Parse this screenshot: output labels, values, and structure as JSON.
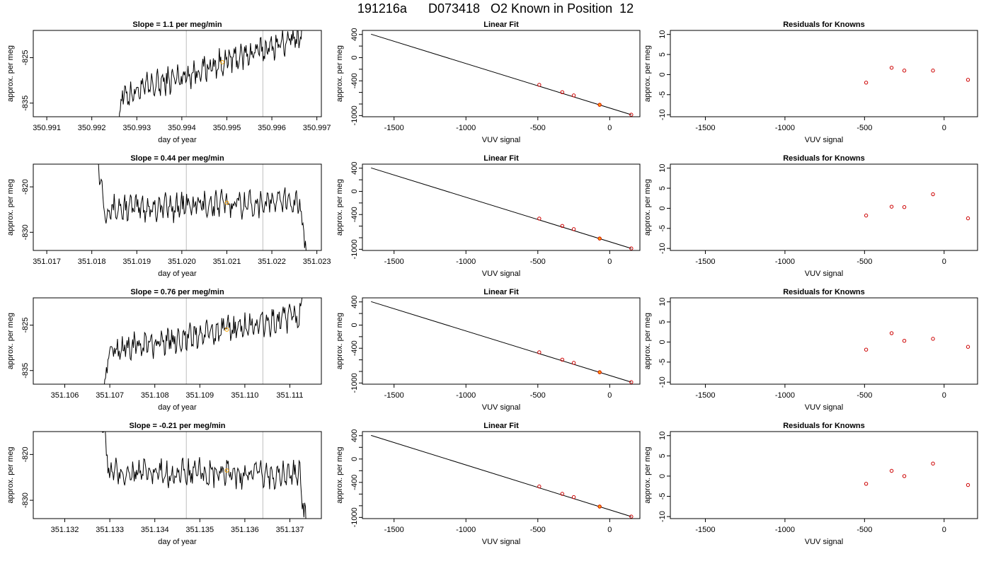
{
  "title": "191216a      D073418   O2 Known in Position  12",
  "chart_data": [
    {
      "panel": "trace",
      "row": 1,
      "type": "line",
      "title": "Slope =  1.1  per meg/min",
      "xlabel": "day of year",
      "ylabel": "approx. per meg",
      "xlim": [
        350.9907,
        350.9971
      ],
      "ylim": [
        -838,
        -819
      ],
      "xticks": [
        350.991,
        350.992,
        350.993,
        350.994,
        350.995,
        350.996,
        350.997
      ],
      "xtick_labels": [
        "350.991",
        "350.992",
        "350.993",
        "350.994",
        "350.995",
        "350.996",
        "350.997"
      ],
      "yticks": [
        -835,
        -825
      ],
      "ytick_labels": [
        "-835",
        "-825"
      ],
      "vlines": [
        350.9941,
        350.9958
      ],
      "marker": {
        "x": 350.9949,
        "y": -826,
        "color": "#ffa500"
      },
      "trace_x_range": [
        350.9925,
        350.9968
      ],
      "trend": {
        "start": -834,
        "end": -820
      },
      "line_color": "#000000",
      "vline_color": "#bebebe"
    },
    {
      "panel": "trace",
      "row": 2,
      "type": "line",
      "title": "Slope =  0.44  per meg/min",
      "xlabel": "day of year",
      "ylabel": "approx. per meg",
      "xlim": [
        351.0167,
        351.0231
      ],
      "ylim": [
        -834,
        -815
      ],
      "xticks": [
        351.017,
        351.018,
        351.019,
        351.02,
        351.021,
        351.022,
        351.023
      ],
      "xtick_labels": [
        "351.017",
        "351.018",
        "351.019",
        "351.020",
        "351.021",
        "351.022",
        "351.023"
      ],
      "yticks": [
        -830,
        -820
      ],
      "ytick_labels": [
        "-830",
        "-820"
      ],
      "vlines": [
        351.0201,
        351.0218
      ],
      "marker": {
        "x": 351.021,
        "y": -823.5,
        "color": "#ffa500"
      },
      "trace_x_range": [
        351.0181,
        351.0228
      ],
      "trend": {
        "start": -825,
        "end": -823
      },
      "line_color": "#000000",
      "vline_color": "#bebebe"
    },
    {
      "panel": "trace",
      "row": 3,
      "type": "line",
      "title": "Slope =  0.76  per meg/min",
      "xlabel": "day of year",
      "ylabel": "approx. per meg",
      "xlim": [
        351.1053,
        351.1117
      ],
      "ylim": [
        -838,
        -819
      ],
      "xticks": [
        351.106,
        351.107,
        351.108,
        351.109,
        351.11,
        351.111
      ],
      "xtick_labels": [
        "351.106",
        "351.107",
        "351.108",
        "351.109",
        "351.110",
        "351.111"
      ],
      "yticks": [
        -835,
        -825
      ],
      "ytick_labels": [
        "-835",
        "-825"
      ],
      "vlines": [
        351.1087,
        351.1104
      ],
      "marker": {
        "x": 351.1096,
        "y": -826,
        "color": "#ffa500"
      },
      "trace_x_range": [
        351.1068,
        351.1114
      ],
      "trend": {
        "start": -831,
        "end": -823
      },
      "line_color": "#000000",
      "vline_color": "#bebebe"
    },
    {
      "panel": "trace",
      "row": 4,
      "type": "line",
      "title": "Slope =  -0.21  per meg/min",
      "xlabel": "day of year",
      "ylabel": "approx. per meg",
      "xlim": [
        351.1313,
        351.1377
      ],
      "ylim": [
        -834,
        -815
      ],
      "xticks": [
        351.132,
        351.133,
        351.134,
        351.135,
        351.136,
        351.137
      ],
      "xtick_labels": [
        "351.132",
        "351.133",
        "351.134",
        "351.135",
        "351.136",
        "351.137"
      ],
      "yticks": [
        -830,
        -820
      ],
      "ytick_labels": [
        "-830",
        "-820"
      ],
      "vlines": [
        351.1347,
        351.1364
      ],
      "marker": {
        "x": 351.1356,
        "y": -823.5,
        "color": "#ffa500"
      },
      "trace_x_range": [
        351.1328,
        351.1374
      ],
      "trend": {
        "start": -824,
        "end": -824.5
      },
      "line_color": "#000000",
      "vline_color": "#bebebe"
    },
    {
      "panel": "fit",
      "row": 1,
      "type": "scatter",
      "title": "Linear Fit",
      "xlabel": "VUV signal",
      "ylabel": "approx. per meg",
      "xlim": [
        -1720,
        210
      ],
      "ylim": [
        -1020,
        470
      ],
      "xticks": [
        -1500,
        -1000,
        -500,
        0
      ],
      "xtick_labels": [
        "-1500",
        "-1000",
        "-500",
        "0"
      ],
      "yticks": [
        -1000,
        -800,
        -600,
        -400,
        -200,
        0,
        200,
        400
      ],
      "ytick_labels": [
        "-1000",
        "",
        "",
        "-400",
        "",
        "0",
        "",
        "400"
      ],
      "line": {
        "x": [
          -1660,
          150
        ],
        "y": [
          405,
          -985
        ]
      },
      "points": {
        "x": [
          -490,
          -330,
          -250
        ],
        "y": [
          -470,
          -596,
          -652
        ],
        "color": "#cd0000"
      },
      "known_points": {
        "x": [
          150
        ],
        "y": [
          -985
        ],
        "color": "#cd0000"
      },
      "unknown_point": {
        "x": -70,
        "y": -814,
        "color": "#ffa500"
      }
    },
    {
      "panel": "fit",
      "row": 2,
      "type": "scatter",
      "title": "Linear Fit",
      "xlabel": "VUV signal",
      "ylabel": "approx. per meg",
      "xlim": [
        -1720,
        210
      ],
      "ylim": [
        -1020,
        470
      ],
      "xticks": [
        -1500,
        -1000,
        -500,
        0
      ],
      "xtick_labels": [
        "-1500",
        "-1000",
        "-500",
        "0"
      ],
      "yticks": [
        -1000,
        -800,
        -600,
        -400,
        -200,
        0,
        200,
        400
      ],
      "ytick_labels": [
        "-1000",
        "",
        "",
        "-400",
        "",
        "0",
        "",
        "400"
      ],
      "line": {
        "x": [
          -1660,
          150
        ],
        "y": [
          405,
          -985
        ]
      },
      "points": {
        "x": [
          -490,
          -330,
          -250
        ],
        "y": [
          -470,
          -596,
          -652
        ],
        "color": "#cd0000"
      },
      "known_points": {
        "x": [
          150
        ],
        "y": [
          -985
        ],
        "color": "#cd0000"
      },
      "unknown_point": {
        "x": -70,
        "y": -814,
        "color": "#ffa500"
      }
    },
    {
      "panel": "fit",
      "row": 3,
      "type": "scatter",
      "title": "Linear Fit",
      "xlabel": "VUV signal",
      "ylabel": "approx. per meg",
      "xlim": [
        -1720,
        210
      ],
      "ylim": [
        -1020,
        470
      ],
      "xticks": [
        -1500,
        -1000,
        -500,
        0
      ],
      "xtick_labels": [
        "-1500",
        "-1000",
        "-500",
        "0"
      ],
      "yticks": [
        -1000,
        -800,
        -600,
        -400,
        -200,
        0,
        200,
        400
      ],
      "ytick_labels": [
        "-1000",
        "",
        "",
        "-400",
        "",
        "0",
        "",
        "400"
      ],
      "line": {
        "x": [
          -1660,
          150
        ],
        "y": [
          405,
          -985
        ]
      },
      "points": {
        "x": [
          -490,
          -330,
          -250
        ],
        "y": [
          -470,
          -596,
          -652
        ],
        "color": "#cd0000"
      },
      "known_points": {
        "x": [
          150
        ],
        "y": [
          -985
        ],
        "color": "#cd0000"
      },
      "unknown_point": {
        "x": -70,
        "y": -814,
        "color": "#ffa500"
      }
    },
    {
      "panel": "fit",
      "row": 4,
      "type": "scatter",
      "title": "Linear Fit",
      "xlabel": "VUV signal",
      "ylabel": "approx. per meg",
      "xlim": [
        -1720,
        210
      ],
      "ylim": [
        -1020,
        470
      ],
      "xticks": [
        -1500,
        -1000,
        -500,
        0
      ],
      "xtick_labels": [
        "-1500",
        "-1000",
        "-500",
        "0"
      ],
      "yticks": [
        -1000,
        -800,
        -600,
        -400,
        -200,
        0,
        200,
        400
      ],
      "ytick_labels": [
        "-1000",
        "",
        "",
        "-400",
        "",
        "0",
        "",
        "400"
      ],
      "line": {
        "x": [
          -1660,
          150
        ],
        "y": [
          405,
          -985
        ]
      },
      "points": {
        "x": [
          -490,
          -330,
          -250
        ],
        "y": [
          -470,
          -596,
          -652
        ],
        "color": "#cd0000"
      },
      "known_points": {
        "x": [
          150
        ],
        "y": [
          -985
        ],
        "color": "#cd0000"
      },
      "unknown_point": {
        "x": -70,
        "y": -814,
        "color": "#ffa500"
      }
    },
    {
      "panel": "resid",
      "row": 1,
      "type": "scatter",
      "title": "Residuals for Knowns",
      "xlabel": "VUV signal",
      "ylabel": "approx. per meg",
      "xlim": [
        -1720,
        210
      ],
      "ylim": [
        -10.5,
        11
      ],
      "xticks": [
        -1500,
        -1000,
        -500,
        0
      ],
      "xtick_labels": [
        "-1500",
        "-1000",
        "-500",
        "0"
      ],
      "yticks": [
        -10,
        -5,
        0,
        5,
        10
      ],
      "ytick_labels": [
        "-10",
        "-5",
        "0",
        "5",
        "10"
      ],
      "points": {
        "x": [
          -490,
          -330,
          -250,
          -70,
          150
        ],
        "y": [
          -2.0,
          1.7,
          1.0,
          1.0,
          -1.3
        ],
        "color": "#cd0000"
      }
    },
    {
      "panel": "resid",
      "row": 2,
      "type": "scatter",
      "title": "Residuals for Knowns",
      "xlabel": "VUV signal",
      "ylabel": "approx. per meg",
      "xlim": [
        -1720,
        210
      ],
      "ylim": [
        -10.5,
        11
      ],
      "xticks": [
        -1500,
        -1000,
        -500,
        0
      ],
      "xtick_labels": [
        "-1500",
        "-1000",
        "-500",
        "0"
      ],
      "yticks": [
        -10,
        -5,
        0,
        5,
        10
      ],
      "ytick_labels": [
        "-10",
        "-5",
        "0",
        "5",
        "10"
      ],
      "points": {
        "x": [
          -490,
          -330,
          -250,
          -70,
          150
        ],
        "y": [
          -1.8,
          0.4,
          0.3,
          3.5,
          -2.5
        ],
        "color": "#cd0000"
      }
    },
    {
      "panel": "resid",
      "row": 3,
      "type": "scatter",
      "title": "Residuals for Knowns",
      "xlabel": "VUV signal",
      "ylabel": "approx. per meg",
      "xlim": [
        -1720,
        210
      ],
      "ylim": [
        -10.5,
        11
      ],
      "xticks": [
        -1500,
        -1000,
        -500,
        0
      ],
      "xtick_labels": [
        "-1500",
        "-1000",
        "-500",
        "0"
      ],
      "yticks": [
        -10,
        -5,
        0,
        5,
        10
      ],
      "ytick_labels": [
        "-10",
        "-5",
        "0",
        "5",
        "10"
      ],
      "points": {
        "x": [
          -490,
          -330,
          -250,
          -70,
          150
        ],
        "y": [
          -1.9,
          2.2,
          0.3,
          0.8,
          -1.2
        ],
        "color": "#cd0000"
      }
    },
    {
      "panel": "resid",
      "row": 4,
      "type": "scatter",
      "title": "Residuals for Knowns",
      "xlabel": "VUV signal",
      "ylabel": "approx. per meg",
      "xlim": [
        -1720,
        210
      ],
      "ylim": [
        -10.5,
        11
      ],
      "xticks": [
        -1500,
        -1000,
        -500,
        0
      ],
      "xtick_labels": [
        "-1500",
        "-1000",
        "-500",
        "0"
      ],
      "yticks": [
        -10,
        -5,
        0,
        5,
        10
      ],
      "ytick_labels": [
        "-10",
        "-5",
        "0",
        "5",
        "10"
      ],
      "points": {
        "x": [
          -490,
          -330,
          -250,
          -70,
          150
        ],
        "y": [
          -1.9,
          1.3,
          0.0,
          3.1,
          -2.2
        ],
        "color": "#cd0000"
      }
    }
  ]
}
